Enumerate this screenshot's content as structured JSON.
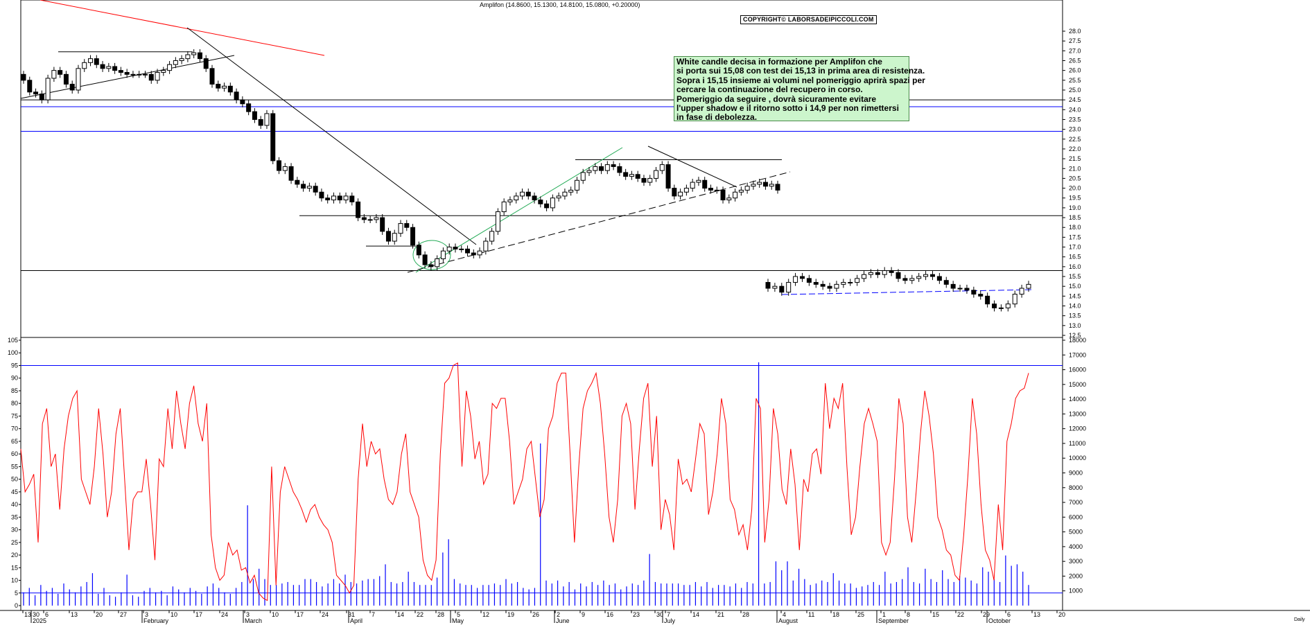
{
  "chart_data": [
    {
      "type": "candlestick",
      "title": "Amplifon (14.8600, 15.1300, 14.8100, 15.0800, +0.20000)",
      "ylim": [
        12.5,
        28.5
      ],
      "y_ticks": [
        "12.5",
        "13.0",
        "13.5",
        "14.0",
        "14.5",
        "15.0",
        "15.5",
        "16.0",
        "16.5",
        "17.0",
        "17.5",
        "18.0",
        "18.5",
        "19.0",
        "19.5",
        "20.0",
        "20.5",
        "21.0",
        "21.5",
        "22.0",
        "22.5",
        "23.0",
        "23.5",
        "24.0",
        "24.5",
        "25.0",
        "25.5",
        "26.0",
        "26.5",
        "27.0",
        "27.5",
        "28.0"
      ],
      "x_day_ticks": [
        "13",
        "30",
        "6",
        "13",
        "20",
        "27",
        "3",
        "10",
        "17",
        "24",
        "3",
        "10",
        "17",
        "24",
        "31",
        "7",
        "14",
        "22",
        "28",
        "5",
        "12",
        "19",
        "26",
        "2",
        "9",
        "16",
        "23",
        "30",
        "7",
        "14",
        "21",
        "28",
        "4",
        "11",
        "18",
        "25",
        "1",
        "8",
        "15",
        "22",
        "29",
        "6",
        "13",
        "20"
      ],
      "x_month_labels": [
        "2025",
        "February",
        "March",
        "April",
        "May",
        "June",
        "July",
        "August",
        "September",
        "October"
      ],
      "series_close_approx": [
        25.5,
        24.9,
        24.8,
        24.5,
        25.6,
        26.0,
        25.8,
        25.3,
        25.0,
        26.1,
        26.4,
        26.6,
        26.3,
        26.1,
        26.2,
        26.0,
        25.9,
        25.8,
        25.8,
        25.8,
        25.8,
        25.5,
        25.9,
        26.0,
        26.3,
        26.5,
        26.6,
        26.8,
        26.9,
        26.6,
        26.1,
        25.3,
        25.1,
        25.2,
        24.9,
        24.5,
        24.3,
        23.9,
        23.5,
        23.2,
        23.8,
        21.4,
        20.9,
        21.1,
        20.4,
        20.2,
        20.0,
        20.1,
        19.8,
        19.5,
        19.4,
        19.6,
        19.4,
        19.6,
        19.3,
        18.5,
        18.4,
        18.4,
        18.5,
        17.8,
        17.3,
        17.7,
        18.2,
        18.0,
        17.1,
        16.6,
        16.1,
        16.0,
        16.4,
        16.8,
        17.0,
        16.9,
        16.9,
        16.7,
        16.6,
        16.8,
        17.3,
        17.8,
        18.8,
        19.3,
        19.4,
        19.6,
        19.8,
        19.6,
        19.4,
        19.2,
        19.0,
        19.5,
        19.6,
        19.8,
        19.9,
        20.4,
        20.8,
        20.9,
        21.1,
        20.9,
        21.2,
        21.1,
        20.8,
        20.6,
        20.7,
        20.5,
        20.3,
        20.5,
        20.9,
        21.2,
        20.0,
        19.6,
        19.8,
        20.0,
        20.3,
        20.4,
        20.0,
        19.9,
        19.9,
        19.4,
        19.5,
        19.8,
        19.9,
        20.1,
        20.2,
        20.3,
        20.1,
        20.2,
        19.9,
        14.9,
        15.0,
        14.7,
        15.2,
        15.5,
        15.4,
        15.2,
        15.1,
        15.0,
        14.9,
        15.1,
        15.2,
        15.2,
        15.4,
        15.6,
        15.7,
        15.6,
        15.8,
        15.7,
        15.4,
        15.3,
        15.4,
        15.5,
        15.6,
        15.5,
        15.3,
        15.1,
        14.9,
        14.9,
        14.8,
        14.6,
        14.5,
        14.1,
        13.9,
        13.9,
        14.1,
        14.6,
        14.9,
        15.1
      ],
      "horizontal_levels": [
        24.5,
        24.15,
        22.9,
        18.6,
        15.8
      ],
      "annotations": [
        "trend lines",
        "channel lines",
        "circle"
      ]
    },
    {
      "type": "line+bar",
      "ylim_left": [
        0,
        105
      ],
      "y_ticks_left": [
        "0",
        "5",
        "10",
        "15",
        "20",
        "25",
        "30",
        "35",
        "40",
        "45",
        "50",
        "55",
        "60",
        "65",
        "70",
        "75",
        "80",
        "85",
        "90",
        "95",
        "100",
        "105"
      ],
      "ylim_right": [
        0,
        18000
      ],
      "y_ticks_right": [
        "1000",
        "2000",
        "3000",
        "4000",
        "5000",
        "6000",
        "7000",
        "8000",
        "9000",
        "10000",
        "11000",
        "12000",
        "13000",
        "14000",
        "15000",
        "16000",
        "17000",
        "18000"
      ],
      "horizontal_levels": [
        95,
        5
      ],
      "oscillator_approx": [
        62,
        45,
        48,
        52,
        25,
        72,
        78,
        55,
        60,
        38,
        62,
        75,
        82,
        85,
        50,
        45,
        40,
        55,
        78,
        60,
        35,
        45,
        68,
        78,
        50,
        22,
        42,
        45,
        45,
        58,
        40,
        18,
        58,
        55,
        78,
        62,
        85,
        72,
        62,
        80,
        87,
        72,
        65,
        80,
        28,
        15,
        10,
        12,
        25,
        20,
        22,
        14,
        15,
        9,
        12,
        5,
        3,
        2,
        55,
        8,
        45,
        55,
        50,
        45,
        42,
        38,
        33,
        38,
        40,
        35,
        32,
        30,
        25,
        12,
        10,
        8,
        5,
        8,
        50,
        72,
        55,
        65,
        60,
        62,
        50,
        42,
        40,
        45,
        60,
        68,
        45,
        40,
        35,
        18,
        12,
        10,
        18,
        60,
        88,
        90,
        95,
        96,
        55,
        85,
        75,
        58,
        65,
        48,
        52,
        80,
        78,
        82,
        82,
        65,
        40,
        45,
        50,
        62,
        65,
        50,
        35,
        42,
        70,
        75,
        88,
        92,
        92,
        60,
        25,
        55,
        78,
        85,
        88,
        92,
        80,
        60,
        35,
        25,
        42,
        75,
        80,
        72,
        38,
        62,
        82,
        88,
        55,
        75,
        30,
        42,
        36,
        22,
        58,
        48,
        50,
        45,
        58,
        72,
        68,
        36,
        45,
        60,
        82,
        72,
        42,
        38,
        28,
        32,
        22,
        38,
        82,
        78,
        25,
        42,
        78,
        68,
        46,
        40,
        62,
        48,
        22,
        50,
        45,
        60,
        62,
        52,
        88,
        70,
        82,
        78,
        88,
        55,
        28,
        35,
        55,
        72,
        78,
        72,
        65,
        25,
        20,
        25,
        50,
        82,
        72,
        35,
        25,
        45,
        68,
        85,
        75,
        60,
        35,
        30,
        22,
        20,
        12,
        10,
        28,
        52,
        82,
        68,
        40,
        22,
        18,
        10,
        40,
        22,
        65,
        72,
        82,
        85,
        86,
        92
      ],
      "volume_approx": [
        900,
        1200,
        700,
        1400,
        1000,
        1200,
        800,
        1500,
        1100,
        900,
        1300,
        1600,
        2200,
        800,
        1200,
        700,
        600,
        900,
        2100,
        700,
        600,
        1000,
        1200,
        900,
        1000,
        700,
        1300,
        1100,
        900,
        1200,
        1000,
        800,
        1300,
        1500,
        1200,
        900,
        800,
        1200,
        1600,
        6800,
        1800,
        2500,
        1800,
        1400,
        1400,
        1500,
        1600,
        1400,
        1400,
        1800,
        1800,
        1600,
        1300,
        1500,
        1800,
        1500,
        2100,
        1600,
        1500,
        1700,
        1800,
        1800,
        2000,
        2800,
        1600,
        1500,
        1600,
        2300,
        1600,
        1400,
        1400,
        1400,
        1900,
        3600,
        4500,
        1800,
        1500,
        1400,
        1400,
        1200,
        1400,
        1400,
        1500,
        1400,
        1800,
        1500,
        1600,
        1200,
        1100,
        1200,
        11000,
        1700,
        1500,
        1700,
        1300,
        1600,
        1100,
        1500,
        1300,
        1600,
        1400,
        1700,
        1400,
        1500,
        1100,
        1300,
        1500,
        1400,
        1700,
        3500,
        1600,
        1500,
        1500,
        1500,
        1500,
        1400,
        1400,
        1600,
        1300,
        1600,
        1200,
        1400,
        1400,
        1300,
        1500,
        1200,
        1600,
        1500,
        16500,
        1500,
        1600,
        3000,
        2400,
        3000,
        1700,
        2500,
        1800,
        1400,
        1500,
        1700,
        1600,
        2200,
        1700,
        1500,
        1500,
        1200,
        1300,
        1400,
        1600,
        1400,
        2300,
        1500,
        1600,
        1800,
        2600,
        1600,
        1500,
        2500,
        1800,
        1600,
        2400,
        1800,
        1600,
        2000,
        1900,
        1700,
        1500,
        2600,
        2300,
        1800,
        1600,
        3400,
        2700,
        2800,
        2300,
        1400
      ]
    }
  ],
  "copyright_label": "COPYRIGHT© LABORSADEIPICCOLI.COM",
  "note": {
    "lines": [
      "White candle decisa in formazione per Amplifon che",
      "si porta sui 15,08 con test dei 15,13 in prima area di resistenza.",
      "Sopra i 15,15 insieme ai volumi nel pomeriggio aprirà spazi per",
      "cercare la continuazione del recupero in corso.",
      "Pomeriggio da seguire , dovrà sicuramente evitare",
      "l'upper shadow e il ritorno sotto i 14,9 per non rimettersi",
      "in fase di debolezza."
    ]
  },
  "colors": {
    "grid": "#000000",
    "level_blue": "#0000ff",
    "trend_red": "#ff0000",
    "trend_green": "#22aa55",
    "osc_red": "#ff0000",
    "volume_blue": "#0000ff",
    "note_bg": "#ccf5cc"
  },
  "corner_label": "Daily"
}
